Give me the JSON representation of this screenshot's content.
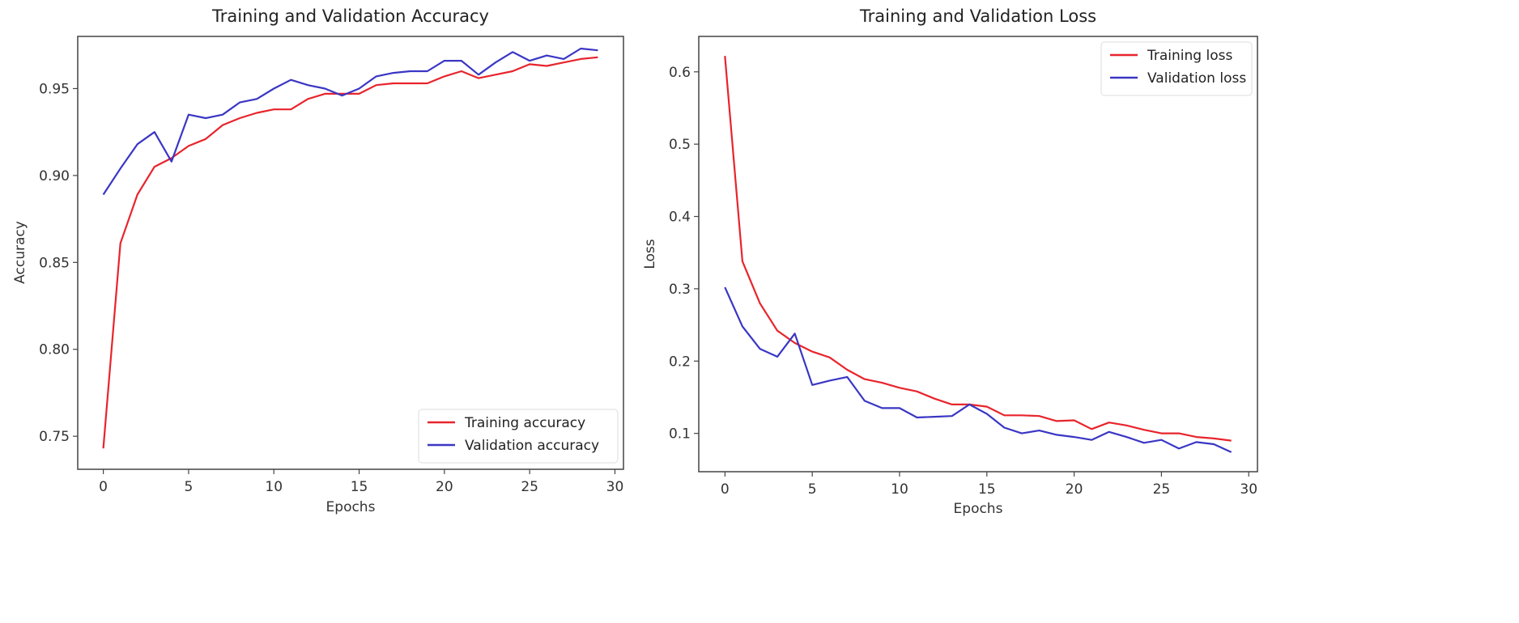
{
  "chart_data": [
    {
      "type": "line",
      "title": "Training and Validation Accuracy",
      "xlabel": "Epochs",
      "ylabel": "Accuracy",
      "xlim": [
        -1.5,
        30.5
      ],
      "ylim": [
        0.731,
        0.98
      ],
      "xticks": [
        0,
        5,
        10,
        15,
        20,
        25,
        30
      ],
      "yticks": [
        0.75,
        0.8,
        0.85,
        0.9,
        0.95
      ],
      "ytick_labels": [
        "0.75",
        "0.80",
        "0.85",
        "0.90",
        "0.95"
      ],
      "grid": false,
      "legend_position": "lower right",
      "x": [
        0,
        1,
        2,
        3,
        4,
        5,
        6,
        7,
        8,
        9,
        10,
        11,
        12,
        13,
        14,
        15,
        16,
        17,
        18,
        19,
        20,
        21,
        22,
        23,
        24,
        25,
        26,
        27,
        28,
        29
      ],
      "series": [
        {
          "name": "Training accuracy",
          "color": "#e8242c",
          "values": [
            0.743,
            0.861,
            0.889,
            0.905,
            0.91,
            0.917,
            0.921,
            0.929,
            0.933,
            0.936,
            0.938,
            0.938,
            0.944,
            0.947,
            0.947,
            0.947,
            0.952,
            0.953,
            0.953,
            0.953,
            0.957,
            0.96,
            0.956,
            0.958,
            0.96,
            0.964,
            0.963,
            0.965,
            0.967,
            0.968
          ]
        },
        {
          "name": "Validation accuracy",
          "color": "#3a36c4",
          "values": [
            0.889,
            0.904,
            0.918,
            0.925,
            0.908,
            0.935,
            0.933,
            0.935,
            0.942,
            0.944,
            0.95,
            0.955,
            0.952,
            0.95,
            0.946,
            0.95,
            0.957,
            0.959,
            0.96,
            0.96,
            0.966,
            0.966,
            0.958,
            0.965,
            0.971,
            0.966,
            0.969,
            0.967,
            0.973,
            0.972
          ]
        }
      ]
    },
    {
      "type": "line",
      "title": "Training and Validation Loss",
      "xlabel": "Epochs",
      "ylabel": "Loss",
      "xlim": [
        -1.5,
        30.5
      ],
      "ylim": [
        0.047,
        0.649
      ],
      "xticks": [
        0,
        5,
        10,
        15,
        20,
        25,
        30
      ],
      "yticks": [
        0.1,
        0.2,
        0.3,
        0.4,
        0.5,
        0.6
      ],
      "ytick_labels": [
        "0.1",
        "0.2",
        "0.3",
        "0.4",
        "0.5",
        "0.6"
      ],
      "grid": false,
      "legend_position": "upper right",
      "x": [
        0,
        1,
        2,
        3,
        4,
        5,
        6,
        7,
        8,
        9,
        10,
        11,
        12,
        13,
        14,
        15,
        16,
        17,
        18,
        19,
        20,
        21,
        22,
        23,
        24,
        25,
        26,
        27,
        28,
        29
      ],
      "series": [
        {
          "name": "Training loss",
          "color": "#e8242c",
          "values": [
            0.622,
            0.338,
            0.28,
            0.242,
            0.225,
            0.213,
            0.205,
            0.188,
            0.175,
            0.17,
            0.163,
            0.158,
            0.148,
            0.14,
            0.14,
            0.137,
            0.125,
            0.125,
            0.124,
            0.117,
            0.118,
            0.106,
            0.115,
            0.111,
            0.105,
            0.1,
            0.1,
            0.095,
            0.093,
            0.09
          ]
        },
        {
          "name": "Validation loss",
          "color": "#3a36c4",
          "values": [
            0.302,
            0.248,
            0.217,
            0.206,
            0.238,
            0.167,
            0.173,
            0.178,
            0.145,
            0.135,
            0.135,
            0.122,
            0.123,
            0.124,
            0.14,
            0.127,
            0.108,
            0.1,
            0.104,
            0.098,
            0.095,
            0.091,
            0.102,
            0.095,
            0.087,
            0.091,
            0.079,
            0.088,
            0.085,
            0.074
          ]
        }
      ]
    }
  ],
  "panels": {
    "left": {
      "title": "Training and Validation Accuracy",
      "xlabel": "Epochs",
      "ylabel": "Accuracy",
      "legend": [
        "Training accuracy",
        "Validation accuracy"
      ]
    },
    "right": {
      "title": "Training and Validation Loss",
      "xlabel": "Epochs",
      "ylabel": "Loss",
      "legend": [
        "Training loss",
        "Validation loss"
      ]
    }
  }
}
